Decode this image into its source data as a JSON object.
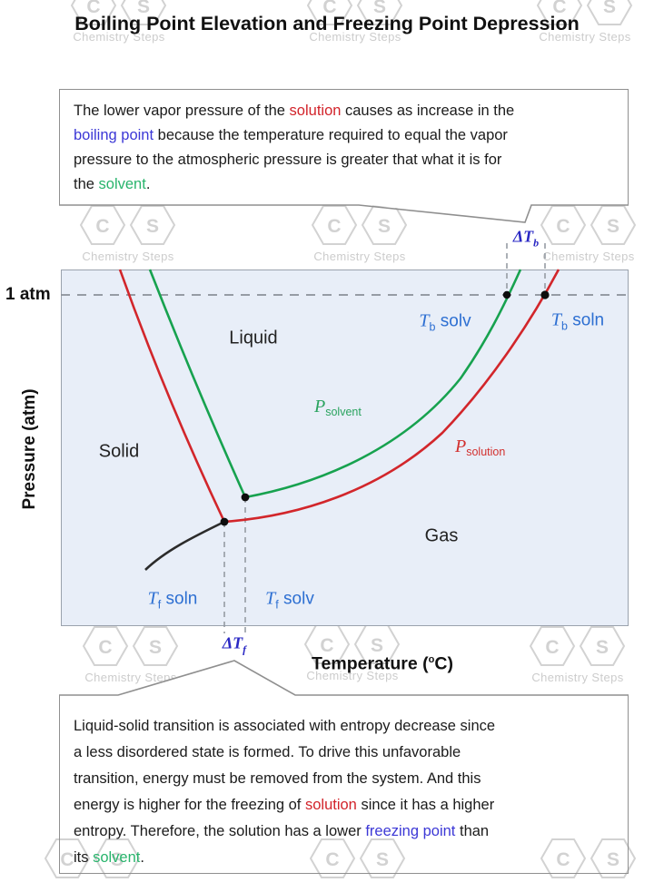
{
  "title": "Boiling Point Elevation and Freezing Point Depression",
  "watermark": {
    "brand": "Chemistry Steps",
    "letter_c": "C",
    "letter_s": "S"
  },
  "top_note": {
    "lines": [
      [
        {
          "t": "The lower vapor pressure of the "
        },
        {
          "t": "solution",
          "c": "#d2232a"
        },
        {
          "t": " causes as increase in the"
        }
      ],
      [
        {
          "t": "boiling point",
          "c": "#3c38d6"
        },
        {
          "t": " because the temperature required to equal the vapor"
        }
      ],
      [
        {
          "t": "pressure to the atmospheric pressure is greater that what it is for"
        }
      ],
      [
        {
          "t": "the "
        },
        {
          "t": "solvent",
          "c": "#28b46c"
        },
        {
          "t": "."
        }
      ]
    ]
  },
  "bottom_note": {
    "lines": [
      [
        {
          "t": "Liquid-solid transition is associated with entropy decrease since"
        }
      ],
      [
        {
          "t": "a less disordered state is formed. To drive this unfavorable"
        }
      ],
      [
        {
          "t": "transition, energy must be removed from the system. And this"
        }
      ],
      [
        {
          "t": "energy is higher for the freezing of "
        },
        {
          "t": "solution",
          "c": "#d2232a"
        },
        {
          "t": " since it has a higher"
        }
      ],
      [
        {
          "t": "entropy. Therefore, the solution has a lower "
        },
        {
          "t": "freezing point",
          "c": "#3c38d6"
        },
        {
          "t": " than"
        }
      ],
      [
        {
          "t": "its "
        },
        {
          "t": "solvent",
          "c": "#28b46c"
        },
        {
          "t": "."
        }
      ]
    ]
  },
  "plot": {
    "one_atm_label": "1 atm",
    "y_axis_label": "Pressure (atm)",
    "x_axis_label": {
      "pre": "Temperature (",
      "sup": "o",
      "post": "C)"
    },
    "regions": {
      "liquid": "Liquid",
      "solid": "Solid",
      "gas": "Gas"
    },
    "labels": {
      "p_solvent": {
        "sym": "P",
        "sub": "solvent"
      },
      "p_solution": {
        "sym": "P",
        "sub": "solution"
      },
      "tb_solv": {
        "sym": "T",
        "sub": "b",
        "rest": " solv"
      },
      "tb_soln": {
        "sym": "T",
        "sub": "b",
        "rest": " soln"
      },
      "tf_soln": {
        "sym": "T",
        "sub": "f",
        "rest": " soln"
      },
      "tf_solv": {
        "sym": "T",
        "sub": "f",
        "rest": " solv"
      },
      "delta_tb": {
        "sym": "ΔT",
        "sub": "b"
      },
      "delta_tf": {
        "sym": "ΔT",
        "sub": "f"
      }
    },
    "curves": {
      "solvent_vaporization": {
        "color": "#17a24f"
      },
      "solution_vaporization": {
        "color": "#d2262b"
      },
      "solvent_fusion": {
        "color": "#17a24f"
      },
      "solution_fusion": {
        "color": "#d2262b"
      },
      "sublimation": {
        "color": "#2b2b2b"
      }
    },
    "colors": {
      "plot_bg": "#e8eef8",
      "axis_blue": "#2d6fd2",
      "delta_navy": "#2a28c4",
      "dash_gray": "#8f969e"
    }
  }
}
